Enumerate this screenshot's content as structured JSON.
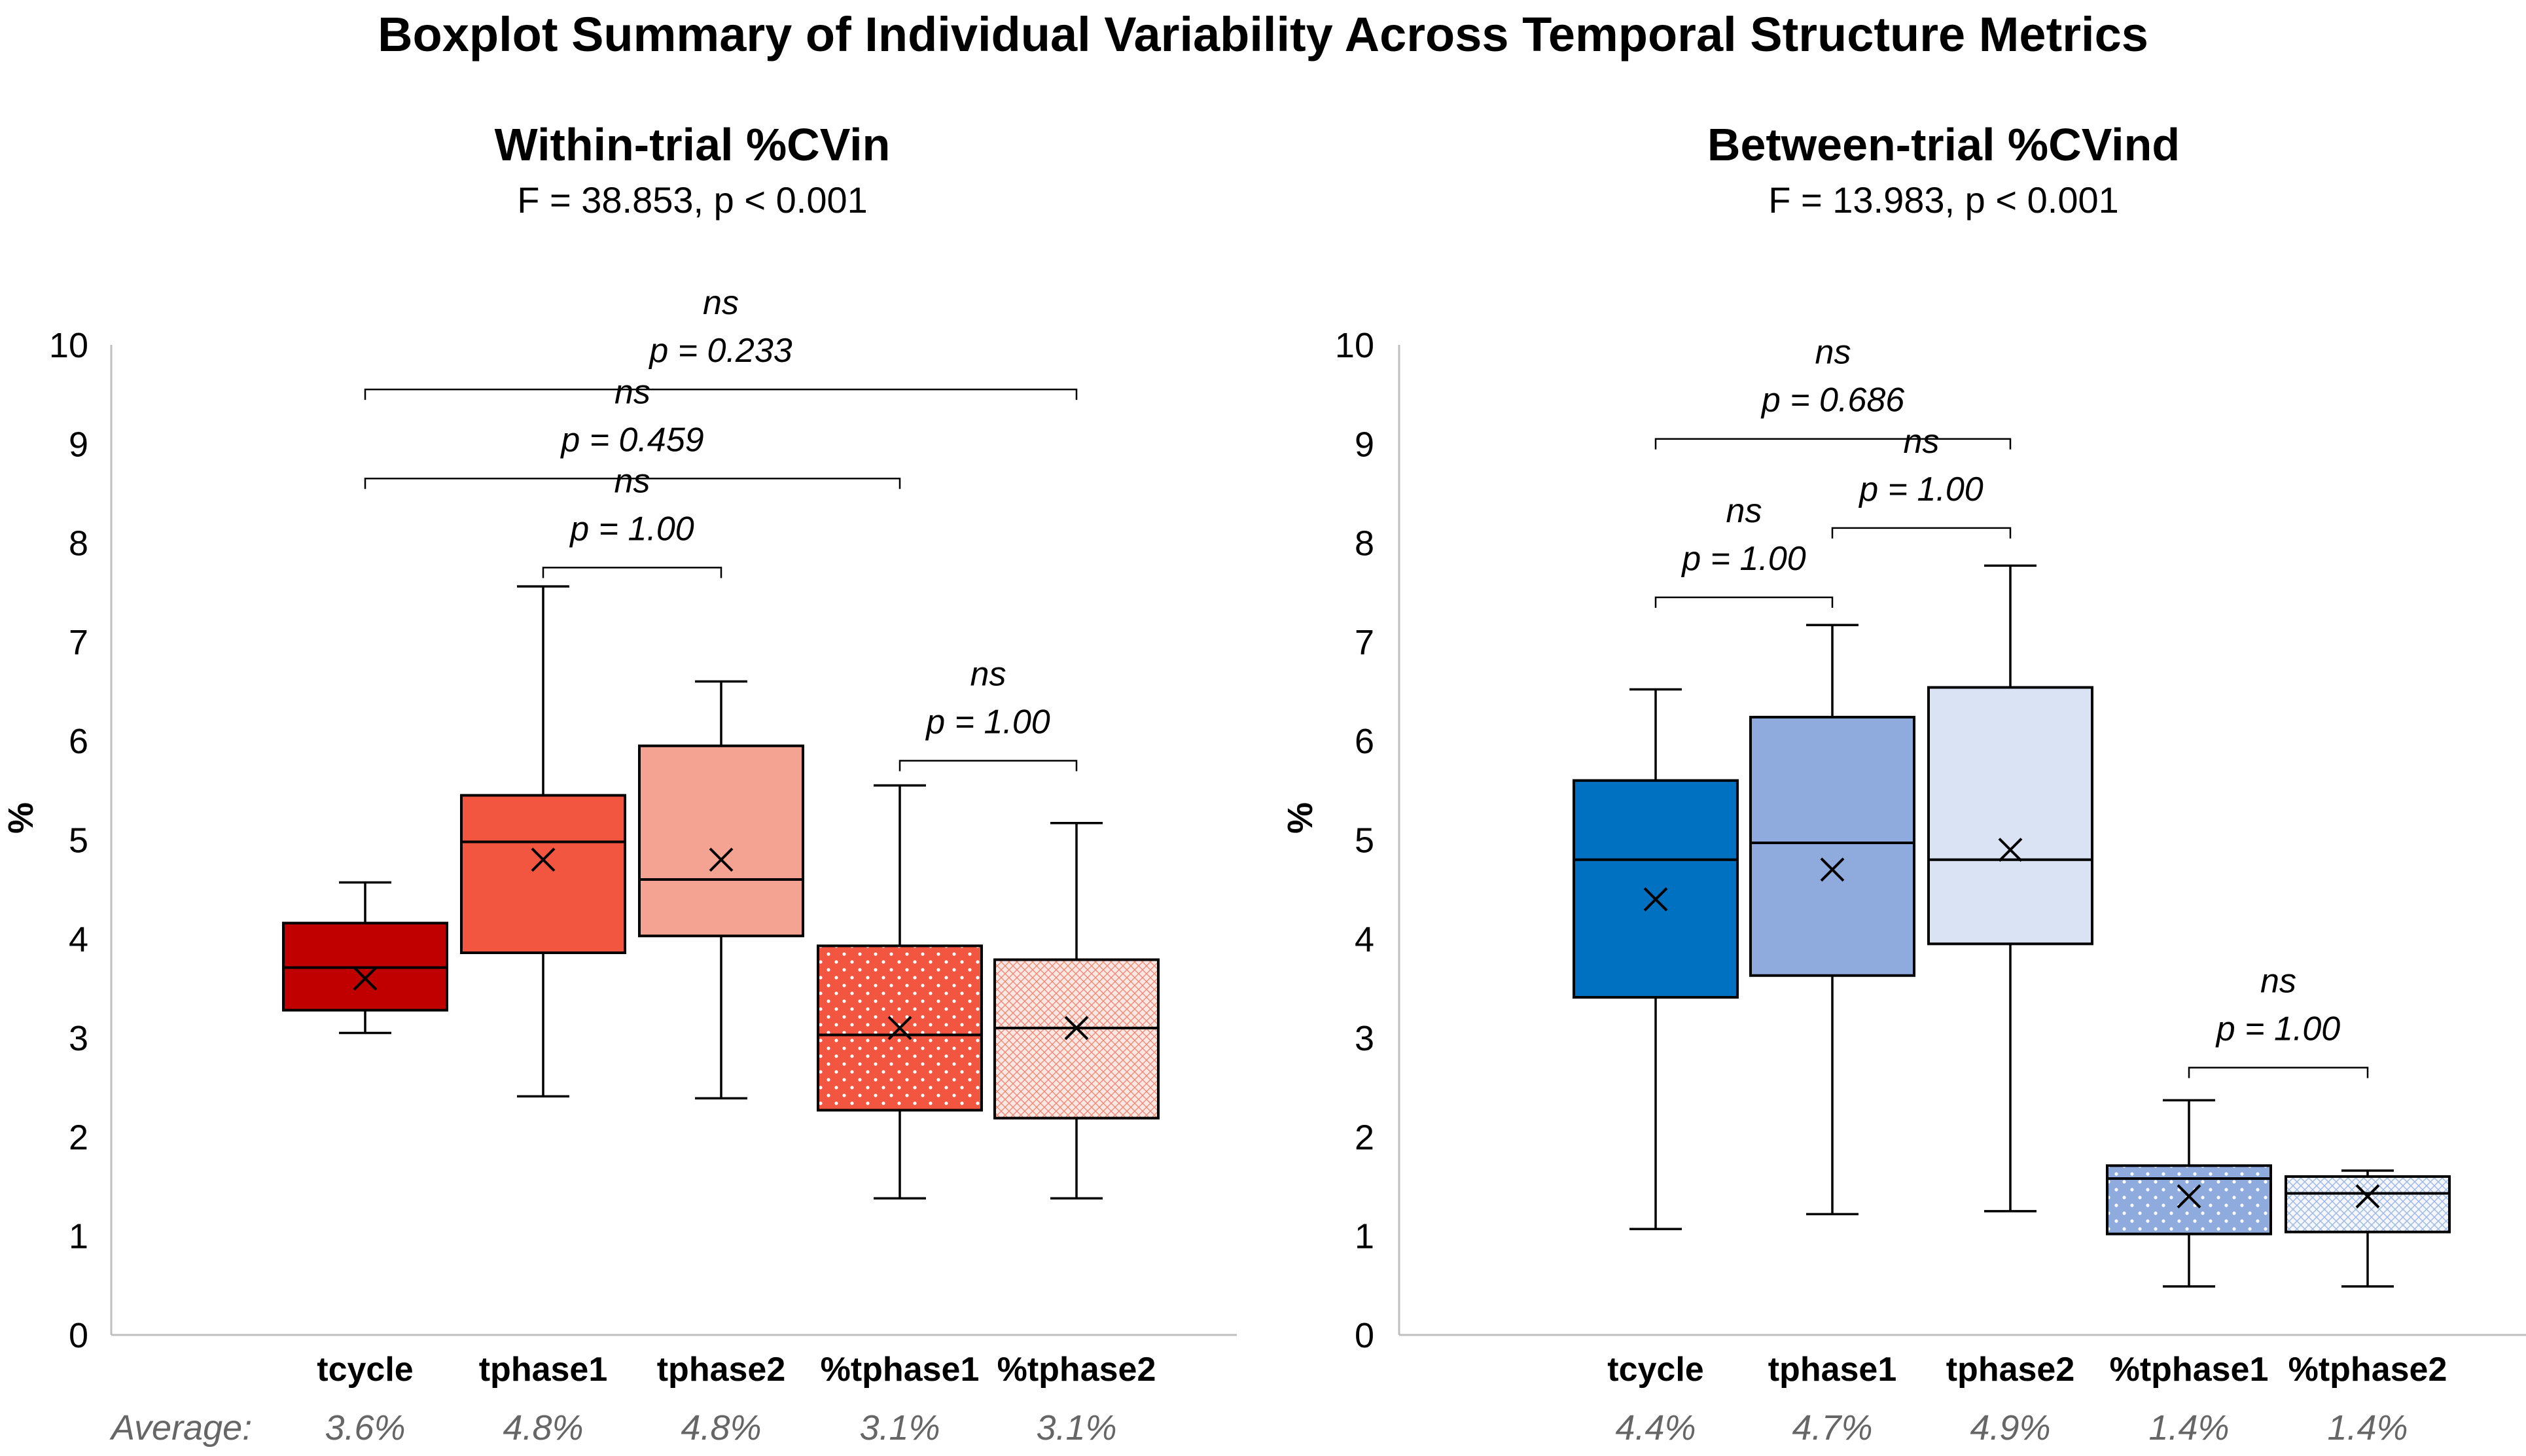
{
  "title": "Boxplot Summary of Individual Variability Across Temporal Structure Metrics",
  "average_label": "Average:",
  "chart_data": [
    {
      "type": "boxplot",
      "title": "Within-trial %CVin",
      "subtitle": "F = 38.853, p < 0.001",
      "ylabel": "%",
      "ylim": [
        0,
        10
      ],
      "yticks": [
        "0",
        "1",
        "2",
        "3",
        "4",
        "5",
        "6",
        "7",
        "8",
        "9",
        "10"
      ],
      "categories": [
        "tcycle",
        "tphase1",
        "tphase2",
        "%tphase1",
        "%tphase2"
      ],
      "boxes": [
        {
          "category": "tcycle",
          "min": 3.05,
          "q1": 3.28,
          "median": 3.71,
          "q3": 4.16,
          "max": 4.57,
          "mean": 3.6,
          "fill": "#c00000",
          "pattern": "none"
        },
        {
          "category": "tphase1",
          "min": 2.41,
          "q1": 3.86,
          "median": 4.98,
          "q3": 5.45,
          "max": 7.56,
          "mean": 4.8,
          "fill": "#f25540",
          "pattern": "none"
        },
        {
          "category": "tphase2",
          "min": 2.39,
          "q1": 4.03,
          "median": 4.6,
          "q3": 5.95,
          "max": 6.6,
          "mean": 4.8,
          "fill": "#f4a392",
          "pattern": "none"
        },
        {
          "category": "%tphase1",
          "min": 1.38,
          "q1": 2.27,
          "median": 3.03,
          "q3": 3.93,
          "max": 5.55,
          "mean": 3.1,
          "fill": "#f25540",
          "pattern": "dots"
        },
        {
          "category": "%tphase2",
          "min": 1.38,
          "q1": 2.19,
          "median": 3.1,
          "q3": 3.79,
          "max": 5.17,
          "mean": 3.1,
          "fill": "#fbe3dd",
          "pattern": "crosshatch"
        }
      ],
      "averages": [
        "3.6%",
        "4.8%",
        "4.8%",
        "3.1%",
        "3.1%"
      ],
      "comparisons": [
        {
          "from": 0,
          "to": 4,
          "label": "ns",
          "p": "p = 0.233",
          "y": 9.55
        },
        {
          "from": 0,
          "to": 3,
          "label": "ns",
          "p": "p = 0.459",
          "y": 8.65
        },
        {
          "from": 1,
          "to": 2,
          "label": "ns",
          "p": "p = 1.00",
          "y": 7.75
        },
        {
          "from": 3,
          "to": 4,
          "label": "ns",
          "p": "p = 1.00",
          "y": 5.8
        }
      ]
    },
    {
      "type": "boxplot",
      "title": "Between-trial %CVind",
      "subtitle": "F = 13.983, p < 0.001",
      "ylabel": "%",
      "ylim": [
        0,
        10
      ],
      "yticks": [
        "0",
        "1",
        "2",
        "3",
        "4",
        "5",
        "6",
        "7",
        "8",
        "9",
        "10"
      ],
      "categories": [
        "tcycle",
        "tphase1",
        "tphase2",
        "%tphase1",
        "%tphase2"
      ],
      "boxes": [
        {
          "category": "tcycle",
          "min": 1.07,
          "q1": 3.41,
          "median": 4.8,
          "q3": 5.6,
          "max": 6.52,
          "mean": 4.4,
          "fill": "#0070c0",
          "pattern": "none"
        },
        {
          "category": "tphase1",
          "min": 1.22,
          "q1": 3.63,
          "median": 4.97,
          "q3": 6.24,
          "max": 7.17,
          "mean": 4.7,
          "fill": "#8faadc",
          "pattern": "none"
        },
        {
          "category": "tphase2",
          "min": 1.25,
          "q1": 3.95,
          "median": 4.8,
          "q3": 6.54,
          "max": 7.77,
          "mean": 4.9,
          "fill": "#dae3f3",
          "pattern": "none"
        },
        {
          "category": "%tphase1",
          "min": 0.49,
          "q1": 1.02,
          "median": 1.58,
          "q3": 1.71,
          "max": 2.37,
          "mean": 1.4,
          "fill": "#8faadc",
          "pattern": "dots"
        },
        {
          "category": "%tphase2",
          "min": 0.49,
          "q1": 1.04,
          "median": 1.43,
          "q3": 1.6,
          "max": 1.66,
          "mean": 1.4,
          "fill": "#eef2fa",
          "pattern": "crosshatch"
        }
      ],
      "averages": [
        "4.4%",
        "4.7%",
        "4.9%",
        "1.4%",
        "1.4%"
      ],
      "comparisons": [
        {
          "from": 0,
          "to": 2,
          "label": "ns",
          "p": "p = 0.686",
          "y": 9.05
        },
        {
          "from": 0,
          "to": 1,
          "label": "ns",
          "p": "p = 1.00",
          "y": 7.45
        },
        {
          "from": 1,
          "to": 2,
          "label": "ns",
          "p": "p = 1.00",
          "y": 8.15
        },
        {
          "from": 3,
          "to": 4,
          "label": "ns",
          "p": "p = 1.00",
          "y": 2.7
        }
      ]
    }
  ]
}
